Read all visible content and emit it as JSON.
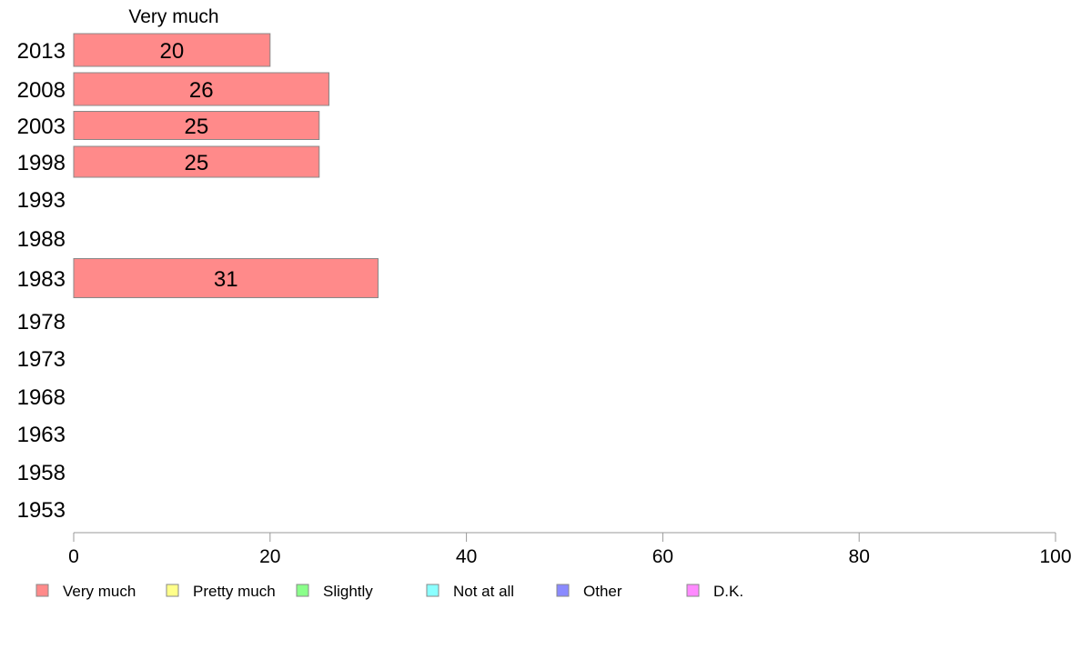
{
  "chart_data": {
    "type": "bar",
    "orientation": "horizontal",
    "series_title": "Very much",
    "categories": [
      "2013",
      "2008",
      "2003",
      "1998",
      "1993",
      "1988",
      "1983",
      "1978",
      "1973",
      "1968",
      "1963",
      "1958",
      "1953"
    ],
    "series": [
      {
        "name": "Very much",
        "values": [
          20,
          26,
          25,
          25,
          null,
          null,
          31,
          null,
          null,
          null,
          null,
          null,
          null
        ]
      }
    ],
    "xlim": [
      0,
      100
    ],
    "xticks": [
      0,
      20,
      40,
      60,
      80,
      100
    ],
    "grid": false,
    "legend": {
      "placement": "bottom",
      "items": [
        {
          "label": "Very much",
          "color": "#ff8a8a"
        },
        {
          "label": "Pretty much",
          "color": "#ffff8a"
        },
        {
          "label": "Slightly",
          "color": "#8aff8a"
        },
        {
          "label": "Not at all",
          "color": "#8affff"
        },
        {
          "label": "Other",
          "color": "#8a8aff"
        },
        {
          "label": "D.K.",
          "color": "#ff8aff"
        }
      ]
    }
  }
}
